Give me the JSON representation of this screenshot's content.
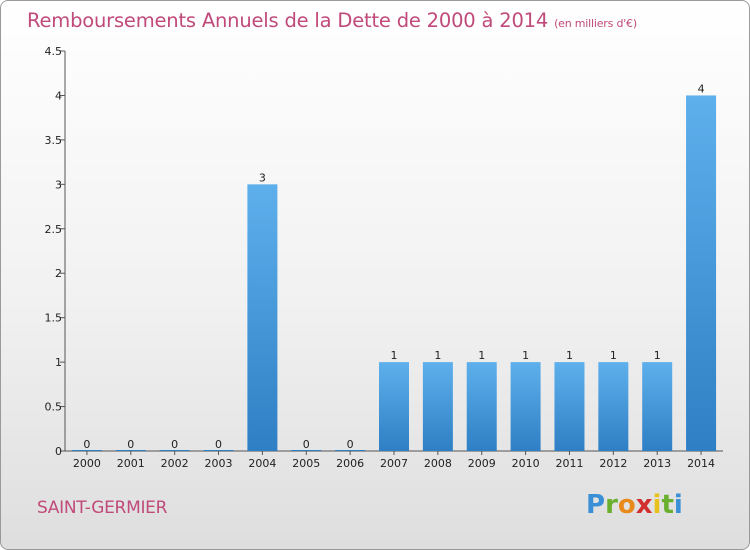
{
  "title": {
    "main": "Remboursements Annuels de la Dette de 2000 à 2014",
    "unit": "(en milliers d'€)"
  },
  "place_name": "SAINT-GERMIER",
  "logo": {
    "letters": [
      {
        "ch": "P",
        "color": "#3a8fd6"
      },
      {
        "ch": "r",
        "color": "#6ab02e"
      },
      {
        "ch": "o",
        "color": "#e8891c"
      },
      {
        "ch": "x",
        "color": "#d22f2f"
      },
      {
        "ch": "i",
        "color": "#e8c21c"
      },
      {
        "ch": "t",
        "color": "#6ab02e"
      },
      {
        "ch": "i",
        "color": "#3a8fd6"
      }
    ]
  },
  "colors": {
    "title": "#c04a7a",
    "bar_top": "#5eb0ec",
    "bar_bottom": "#2e7fc4"
  },
  "chart_data": {
    "type": "bar",
    "title": "Remboursements Annuels de la Dette de 2000 à 2014",
    "unit": "(en milliers d'€)",
    "categories": [
      "2000",
      "2001",
      "2002",
      "2003",
      "2004",
      "2005",
      "2006",
      "2007",
      "2008",
      "2009",
      "2010",
      "2011",
      "2012",
      "2013",
      "2014"
    ],
    "values": [
      0,
      0,
      0,
      0,
      3,
      0,
      0,
      1,
      1,
      1,
      1,
      1,
      1,
      1,
      4
    ],
    "value_labels": [
      "0",
      "0",
      "0",
      "0",
      "3",
      "0",
      "0",
      "1",
      "1",
      "1",
      "1",
      "1",
      "1",
      "1",
      "4"
    ],
    "ylim": [
      0,
      4.5
    ],
    "yticks": [
      0,
      0.5,
      1,
      1.5,
      2,
      2.5,
      3,
      3.5,
      4,
      4.5
    ],
    "ytick_labels": [
      "0",
      "0.5",
      "1",
      "1.5",
      "2",
      "2.5",
      "3",
      "3.5",
      "4",
      "4.5"
    ],
    "xlabel": "",
    "ylabel": "",
    "grid": false,
    "legend": "none"
  }
}
